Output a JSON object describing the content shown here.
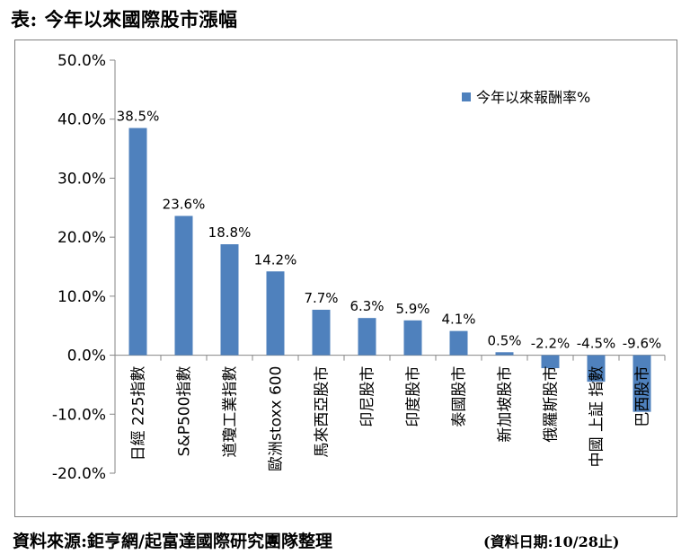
{
  "heading": "表: 今年以來國際股市漲幅",
  "footer": {
    "source": "資料來源:鉅亨網/起富達國際研究團隊整理",
    "date_note": "(資料日期:10/28止)"
  },
  "colors": {
    "bar": "#4f81bd",
    "axis": "#868686",
    "text": "#000000"
  },
  "chart_data": {
    "type": "bar",
    "categories": [
      "日經 225指數",
      "S&P500指數",
      "道瓊工業指數",
      "歐洲stoxx 600",
      "馬來西亞股市",
      "印尼股市",
      "印度股市",
      "泰國股市",
      "新加坡股市",
      "俄羅斯股市",
      "中國 上証 指數",
      "巴西股市"
    ],
    "series": [
      {
        "name": "今年以來報酬率%",
        "values": [
          38.5,
          23.6,
          18.8,
          14.2,
          7.7,
          6.3,
          5.9,
          4.1,
          0.5,
          -2.2,
          -4.5,
          -9.6
        ]
      }
    ],
    "data_labels": [
      "38.5%",
      "23.6%",
      "18.8%",
      "14.2%",
      "7.7%",
      "6.3%",
      "5.9%",
      "4.1%",
      "0.5%",
      "-2.2%",
      "-4.5%",
      "-9.6%"
    ],
    "y_ticks": [
      50,
      40,
      30,
      20,
      10,
      0,
      -10,
      -20
    ],
    "y_tick_labels": [
      "50.0%",
      "40.0%",
      "30.0%",
      "20.0%",
      "10.0%",
      "0.0%",
      "-10.0%",
      "-20.0%"
    ],
    "ylim": [
      -20,
      50
    ],
    "grid": false,
    "legend": "top-right",
    "title": "",
    "xlabel": "",
    "ylabel": ""
  }
}
